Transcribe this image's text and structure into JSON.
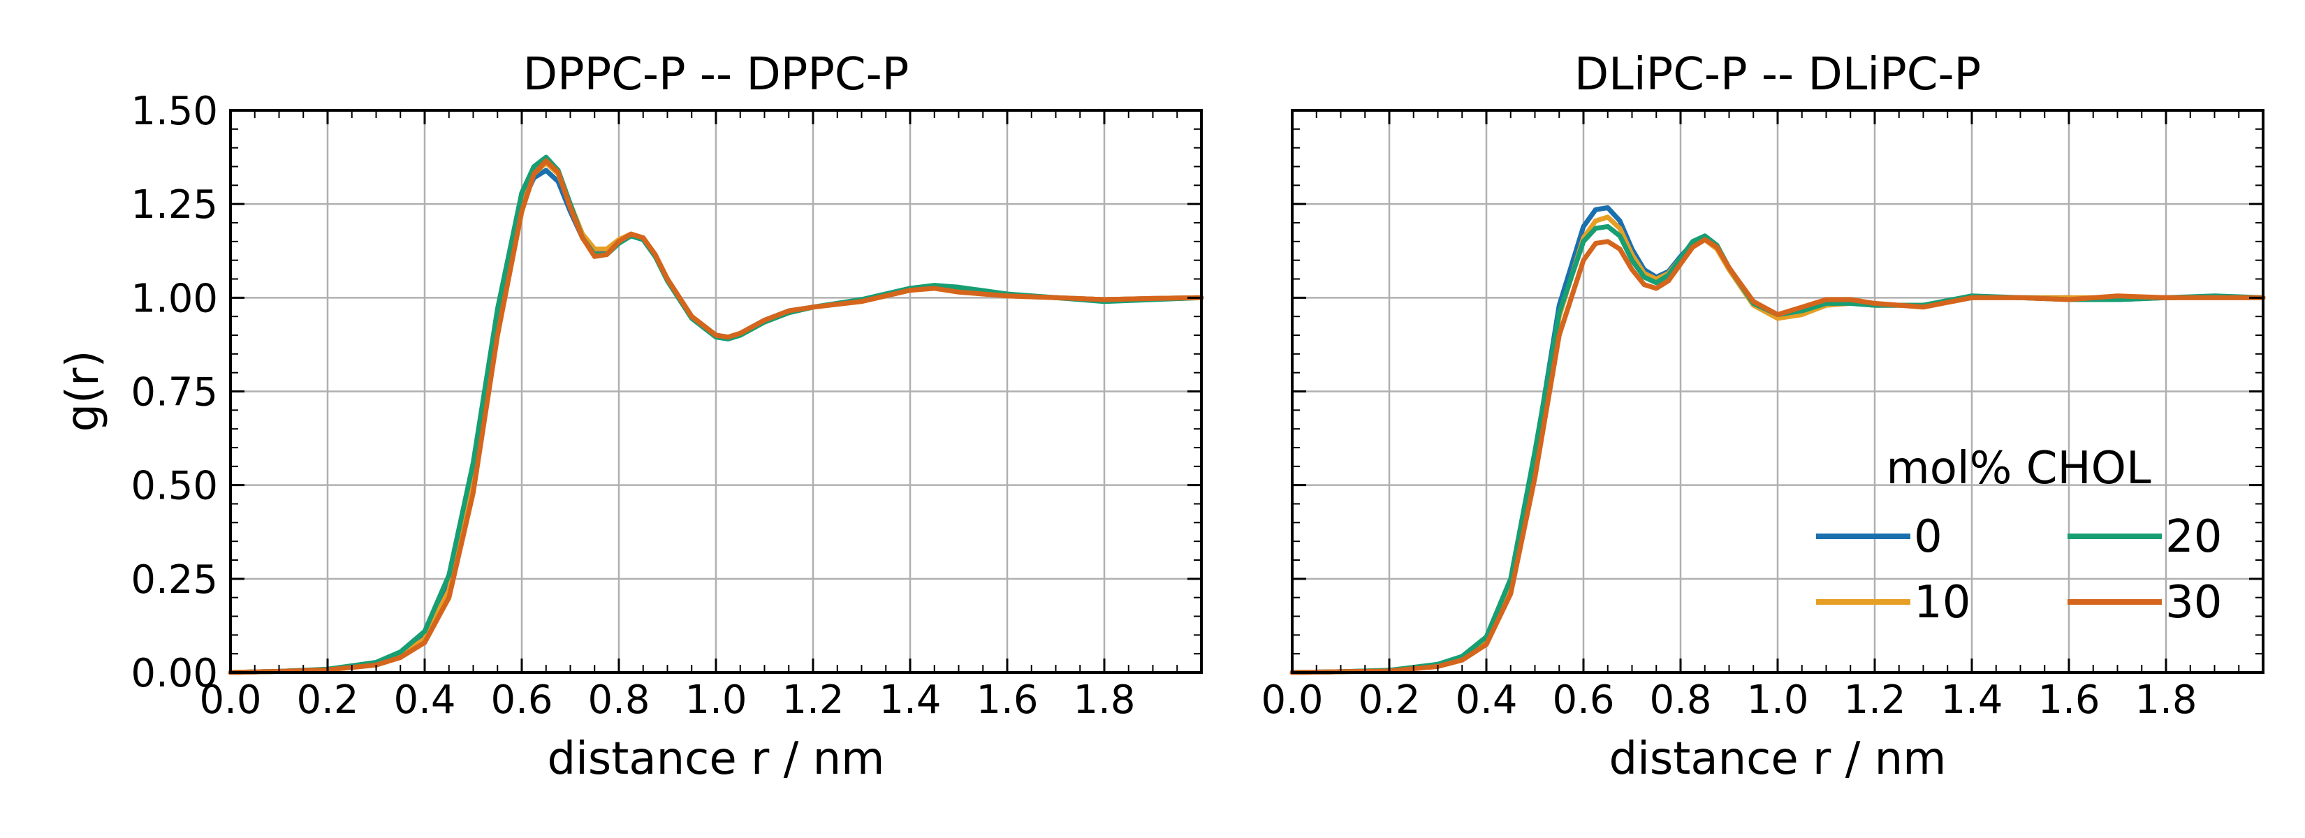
{
  "chart_data": [
    {
      "type": "line",
      "title": "DPPC-P -- DPPC-P",
      "xlabel": "distance r / nm",
      "ylabel": "g(r)",
      "xlim": [
        0.0,
        2.0
      ],
      "ylim": [
        0.0,
        1.5
      ],
      "xticks": [
        "0.0",
        "0.2",
        "0.4",
        "0.6",
        "0.8",
        "1.0",
        "1.2",
        "1.4",
        "1.6",
        "1.8"
      ],
      "yticks": [
        "0.00",
        "0.25",
        "0.50",
        "0.75",
        "1.00",
        "1.25",
        "1.50"
      ],
      "grid": true,
      "x": [
        0.0,
        0.1,
        0.2,
        0.3,
        0.35,
        0.4,
        0.45,
        0.5,
        0.55,
        0.6,
        0.625,
        0.65,
        0.675,
        0.7,
        0.725,
        0.75,
        0.775,
        0.8,
        0.825,
        0.85,
        0.875,
        0.9,
        0.95,
        1.0,
        1.025,
        1.05,
        1.1,
        1.15,
        1.2,
        1.3,
        1.4,
        1.45,
        1.5,
        1.6,
        1.7,
        1.8,
        1.9,
        2.0
      ],
      "series": [
        {
          "name": "0",
          "color": "#1a6faf",
          "values": [
            0.0,
            0.003,
            0.008,
            0.025,
            0.05,
            0.1,
            0.25,
            0.55,
            0.95,
            1.25,
            1.32,
            1.34,
            1.31,
            1.23,
            1.16,
            1.12,
            1.12,
            1.15,
            1.165,
            1.155,
            1.11,
            1.05,
            0.95,
            0.9,
            0.895,
            0.905,
            0.94,
            0.965,
            0.975,
            0.995,
            1.025,
            1.03,
            1.025,
            1.008,
            1.0,
            0.995,
            0.998,
            1.0
          ]
        },
        {
          "name": "10",
          "color": "#e69f24",
          "values": [
            0.0,
            0.003,
            0.008,
            0.022,
            0.045,
            0.09,
            0.22,
            0.5,
            0.9,
            1.24,
            1.33,
            1.36,
            1.33,
            1.25,
            1.17,
            1.13,
            1.13,
            1.155,
            1.17,
            1.16,
            1.115,
            1.05,
            0.95,
            0.9,
            0.893,
            0.9,
            0.935,
            0.96,
            0.975,
            0.99,
            1.02,
            1.025,
            1.02,
            1.005,
            1.0,
            0.995,
            0.998,
            1.0
          ]
        },
        {
          "name": "20",
          "color": "#179e73",
          "values": [
            0.0,
            0.003,
            0.009,
            0.027,
            0.055,
            0.11,
            0.26,
            0.56,
            0.97,
            1.28,
            1.35,
            1.375,
            1.34,
            1.25,
            1.16,
            1.115,
            1.115,
            1.145,
            1.165,
            1.155,
            1.11,
            1.045,
            0.945,
            0.895,
            0.89,
            0.9,
            0.935,
            0.96,
            0.975,
            0.995,
            1.025,
            1.033,
            1.028,
            1.01,
            1.0,
            0.99,
            0.995,
            1.0
          ]
        },
        {
          "name": "30",
          "color": "#d5651c",
          "values": [
            0.0,
            0.003,
            0.007,
            0.02,
            0.04,
            0.08,
            0.2,
            0.48,
            0.9,
            1.23,
            1.33,
            1.365,
            1.335,
            1.24,
            1.16,
            1.11,
            1.115,
            1.15,
            1.17,
            1.16,
            1.115,
            1.05,
            0.95,
            0.9,
            0.895,
            0.905,
            0.94,
            0.965,
            0.975,
            0.99,
            1.02,
            1.025,
            1.015,
            1.005,
            1.0,
            0.995,
            0.998,
            1.0
          ]
        }
      ]
    },
    {
      "type": "line",
      "title": "DLiPC-P -- DLiPC-P",
      "xlabel": "distance r / nm",
      "ylabel": "",
      "xlim": [
        0.0,
        2.0
      ],
      "ylim": [
        0.0,
        1.5
      ],
      "xticks": [
        "0.0",
        "0.2",
        "0.4",
        "0.6",
        "0.8",
        "1.0",
        "1.2",
        "1.4",
        "1.6",
        "1.8"
      ],
      "grid": true,
      "legend": {
        "title": "mol% CHOL",
        "placement": "lower-right",
        "columns": 2
      },
      "x": [
        0.0,
        0.1,
        0.2,
        0.3,
        0.35,
        0.4,
        0.45,
        0.5,
        0.55,
        0.6,
        0.625,
        0.65,
        0.675,
        0.7,
        0.725,
        0.75,
        0.775,
        0.8,
        0.825,
        0.85,
        0.875,
        0.9,
        0.95,
        1.0,
        1.05,
        1.1,
        1.15,
        1.2,
        1.3,
        1.4,
        1.5,
        1.6,
        1.7,
        1.8,
        1.9,
        2.0
      ],
      "series": [
        {
          "name": "0",
          "color": "#1a6faf",
          "values": [
            0.0,
            0.002,
            0.005,
            0.02,
            0.04,
            0.09,
            0.24,
            0.58,
            0.98,
            1.19,
            1.235,
            1.24,
            1.205,
            1.13,
            1.075,
            1.055,
            1.07,
            1.11,
            1.145,
            1.16,
            1.135,
            1.08,
            0.985,
            0.95,
            0.96,
            0.985,
            0.985,
            0.98,
            0.98,
            1.0,
            1.0,
            1.0,
            0.995,
            1.0,
            1.0,
            1.0
          ]
        },
        {
          "name": "10",
          "color": "#e69f24",
          "values": [
            0.0,
            0.002,
            0.005,
            0.018,
            0.037,
            0.085,
            0.23,
            0.56,
            0.95,
            1.16,
            1.205,
            1.215,
            1.185,
            1.115,
            1.065,
            1.05,
            1.065,
            1.105,
            1.14,
            1.155,
            1.13,
            1.075,
            0.98,
            0.945,
            0.955,
            0.98,
            0.985,
            0.98,
            0.98,
            1.0,
            1.0,
            1.0,
            1.0,
            1.0,
            1.0,
            1.0
          ]
        },
        {
          "name": "20",
          "color": "#179e73",
          "values": [
            0.0,
            0.002,
            0.006,
            0.022,
            0.043,
            0.095,
            0.25,
            0.59,
            0.96,
            1.15,
            1.185,
            1.19,
            1.165,
            1.1,
            1.055,
            1.04,
            1.06,
            1.105,
            1.15,
            1.165,
            1.14,
            1.08,
            0.985,
            0.955,
            0.965,
            0.985,
            0.985,
            0.98,
            0.98,
            1.005,
            1.0,
            0.995,
            0.995,
            1.0,
            1.005,
            1.0
          ]
        },
        {
          "name": "30",
          "color": "#d5651c",
          "values": [
            0.0,
            0.002,
            0.004,
            0.016,
            0.033,
            0.075,
            0.21,
            0.52,
            0.9,
            1.1,
            1.145,
            1.15,
            1.13,
            1.075,
            1.035,
            1.025,
            1.045,
            1.09,
            1.135,
            1.155,
            1.135,
            1.08,
            0.99,
            0.955,
            0.975,
            0.995,
            0.995,
            0.985,
            0.975,
            1.0,
            1.0,
            0.995,
            1.005,
            1.0,
            1.0,
            1.0
          ]
        }
      ]
    }
  ]
}
